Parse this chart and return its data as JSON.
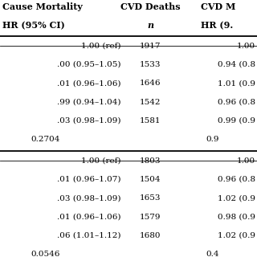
{
  "header_row1_col0": "Cause Mortality",
  "header_row1_col1": "CVD Deaths",
  "header_row1_col2": "CVD M",
  "header_row2_col0": "HR (95% CI)",
  "header_row2_col1": "n",
  "header_row2_col2": "HR (9.",
  "section1": [
    [
      "1.00 (ref)",
      "1917",
      "1.00"
    ],
    [
      ".00 (0.95–1.05)",
      "1533",
      "0.94 (0.8"
    ],
    [
      ".01 (0.96–1.06)",
      "1646",
      "1.01 (0.9"
    ],
    [
      ".99 (0.94–1.04)",
      "1542",
      "0.96 (0.8"
    ],
    [
      ".03 (0.98–1.09)",
      "1581",
      "0.99 (0.9"
    ],
    [
      "0.2704",
      "",
      "0.9"
    ]
  ],
  "section2": [
    [
      "1.00 (ref)",
      "1803",
      "1.00"
    ],
    [
      ".01 (0.96–1.07)",
      "1504",
      "0.96 (0.8"
    ],
    [
      ".03 (0.98–1.09)",
      "1653",
      "1.02 (0.9"
    ],
    [
      ".01 (0.96–1.06)",
      "1579",
      "0.98 (0.9"
    ],
    [
      ".06 (1.01–1.12)",
      "1680",
      "1.02 (0.9"
    ],
    [
      "0.0546",
      "",
      "0.4"
    ]
  ],
  "bg_color": "#ffffff",
  "text_color": "#000000",
  "line_color": "#000000",
  "font_size": 7.5,
  "header_font_size": 8.0
}
